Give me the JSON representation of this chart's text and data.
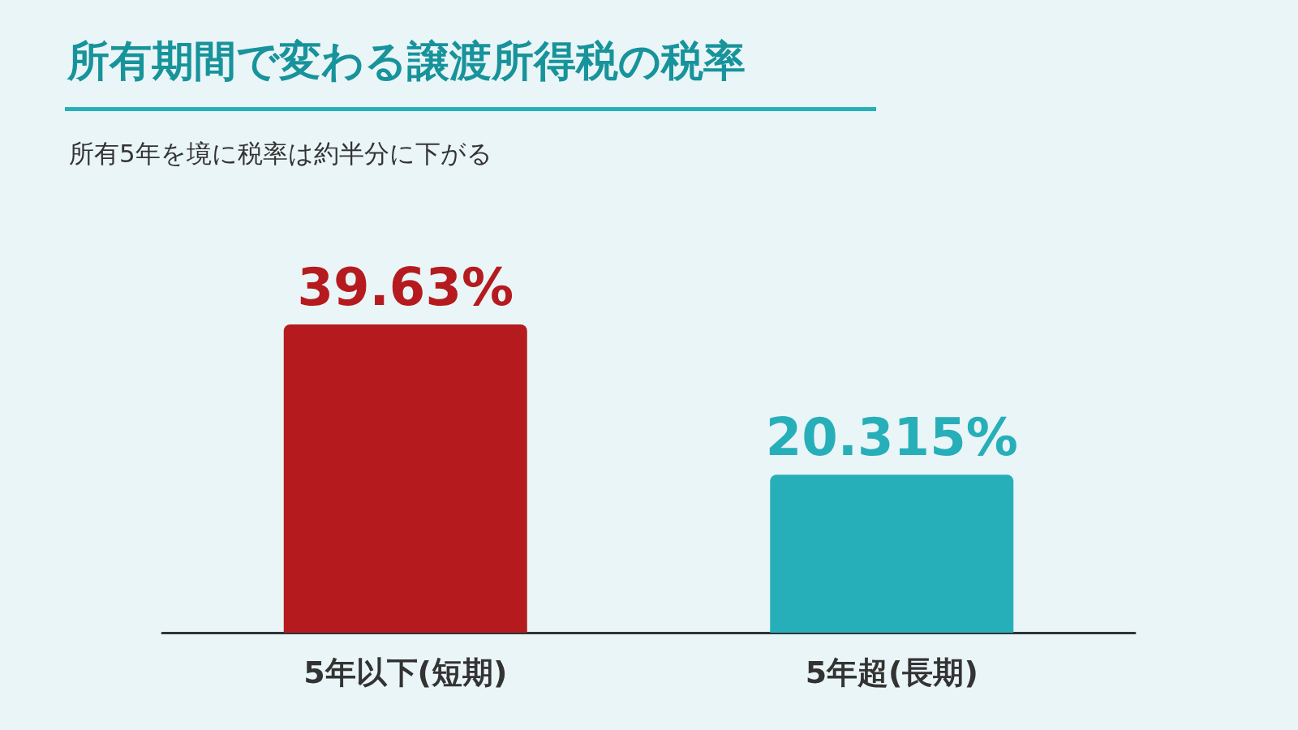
{
  "chart_data": {
    "type": "bar",
    "title": "所有期間で変わる譲渡所得税の税率",
    "subtitle": "所有5年を境に税率は約半分に下がる",
    "categories": [
      "5年以下(短期)",
      "5年超(長期)"
    ],
    "values": [
      39.63,
      20.315
    ],
    "colors": [
      "#b51b1e",
      "#27afb9"
    ],
    "value_labels": [
      "39.63%",
      "20.315%"
    ]
  }
}
